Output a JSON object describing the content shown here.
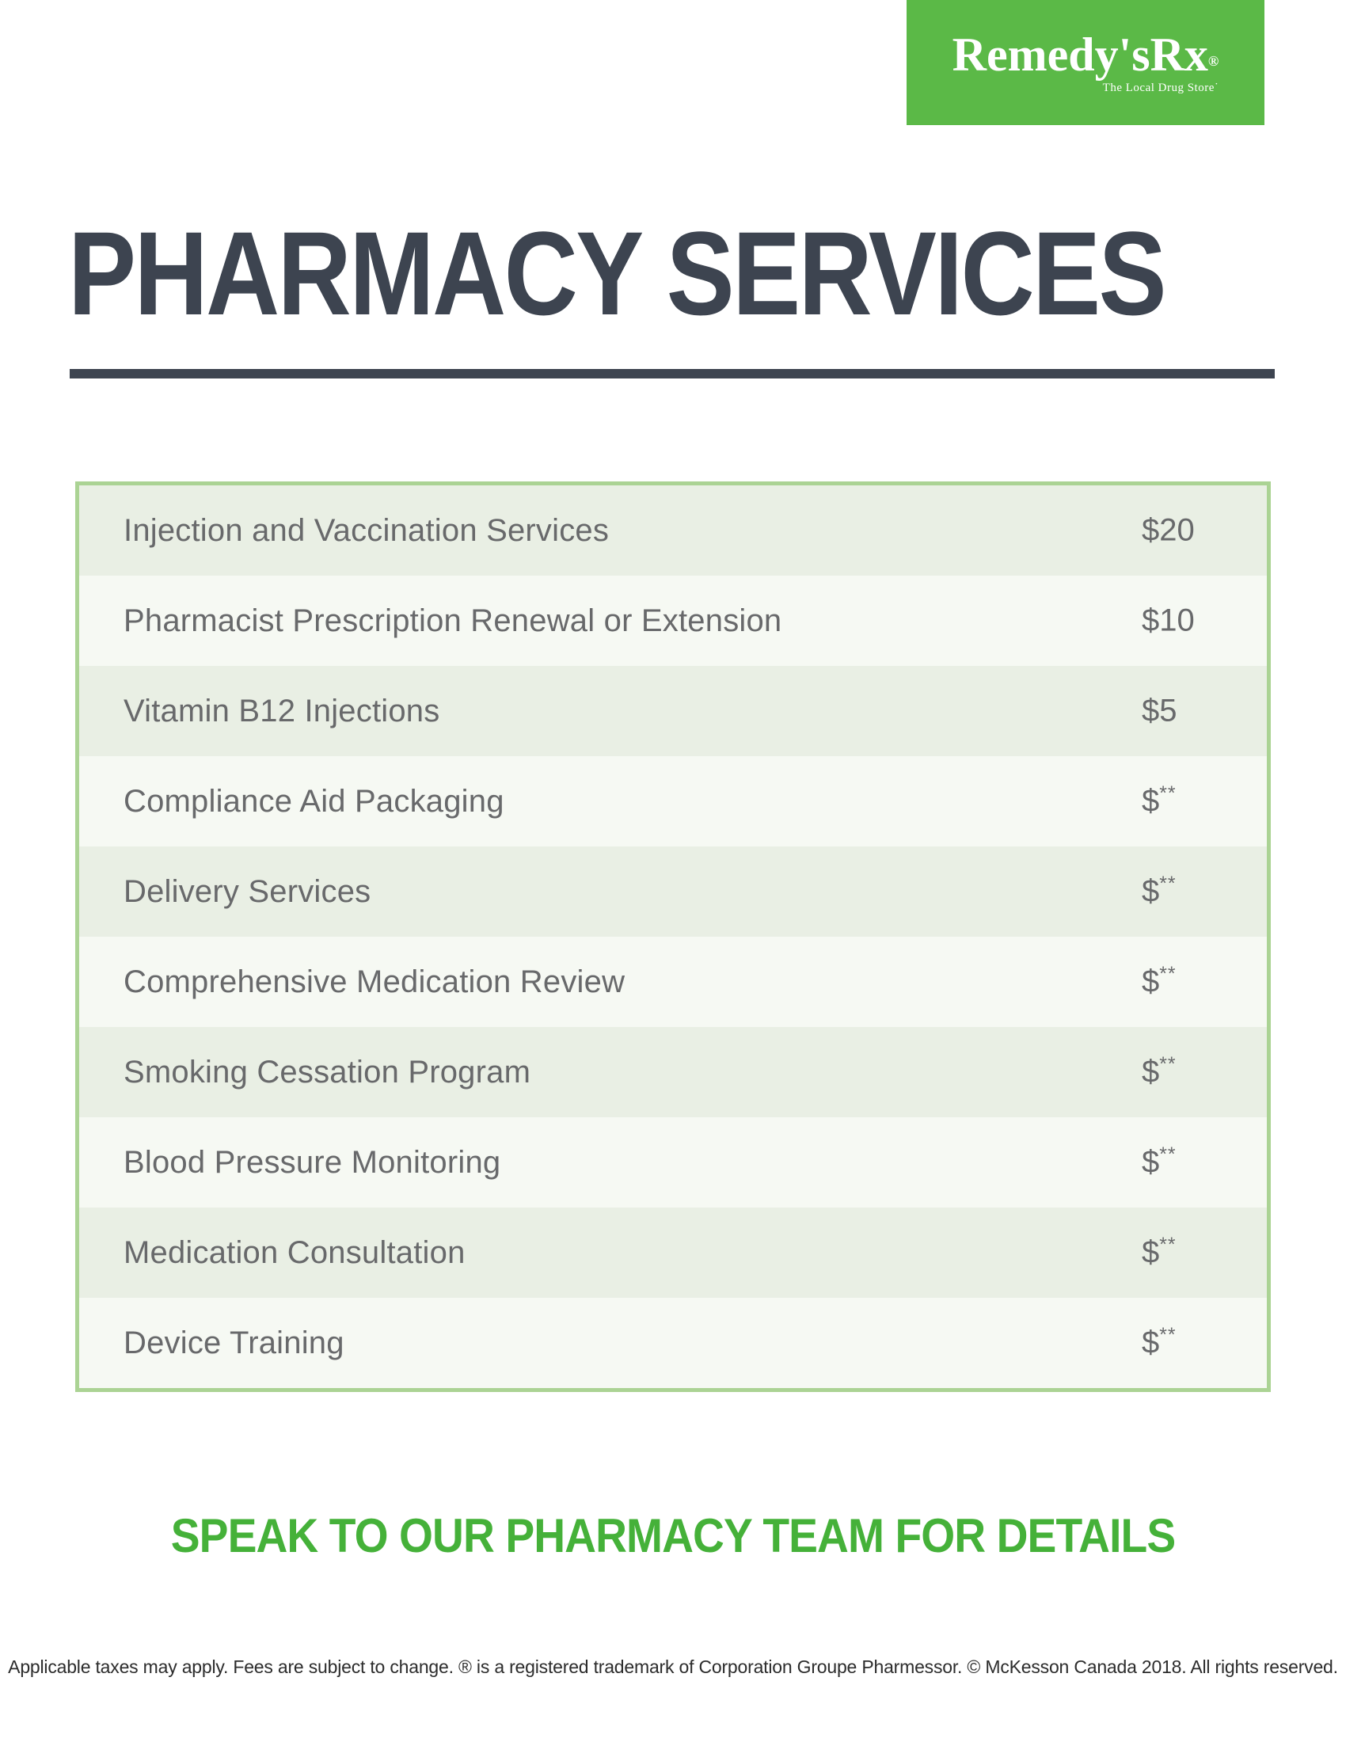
{
  "logo": {
    "brand": "Remedy'sRx",
    "registered_mark": "®",
    "tagline": "The Local Drug Store˙",
    "bg_color": "#5bb947"
  },
  "header": {
    "title": "PHARMACY SERVICES",
    "title_color": "#3d4450"
  },
  "table": {
    "border_color": "#abd394",
    "row_color_odd": "#e9efe4",
    "row_color_even": "#f6f9f3",
    "rows": [
      {
        "service": "Injection and Vaccination Services",
        "price": "$20",
        "note": ""
      },
      {
        "service": "Pharmacist Prescription Renewal or Extension",
        "price": "$10",
        "note": ""
      },
      {
        "service": "Vitamin B12 Injections",
        "price": "$5",
        "note": ""
      },
      {
        "service": "Compliance Aid Packaging",
        "price": "$",
        "note": "**"
      },
      {
        "service": "Delivery Services",
        "price": "$",
        "note": "**"
      },
      {
        "service": "Comprehensive Medication Review",
        "price": "$",
        "note": "**"
      },
      {
        "service": "Smoking Cessation Program",
        "price": "$",
        "note": "**"
      },
      {
        "service": "Blood Pressure Monitoring",
        "price": "$",
        "note": "**"
      },
      {
        "service": "Medication Consultation",
        "price": "$",
        "note": "**"
      },
      {
        "service": "Device Training",
        "price": "$",
        "note": "**"
      }
    ]
  },
  "cta": {
    "text": "SPEAK TO OUR PHARMACY TEAM FOR DETAILS",
    "color": "#45b139"
  },
  "footer": {
    "text": "Applicable taxes may apply. Fees are subject to change. ® is a registered trademark of Corporation Groupe Pharmessor. © McKesson Canada 2018. All rights reserved."
  }
}
